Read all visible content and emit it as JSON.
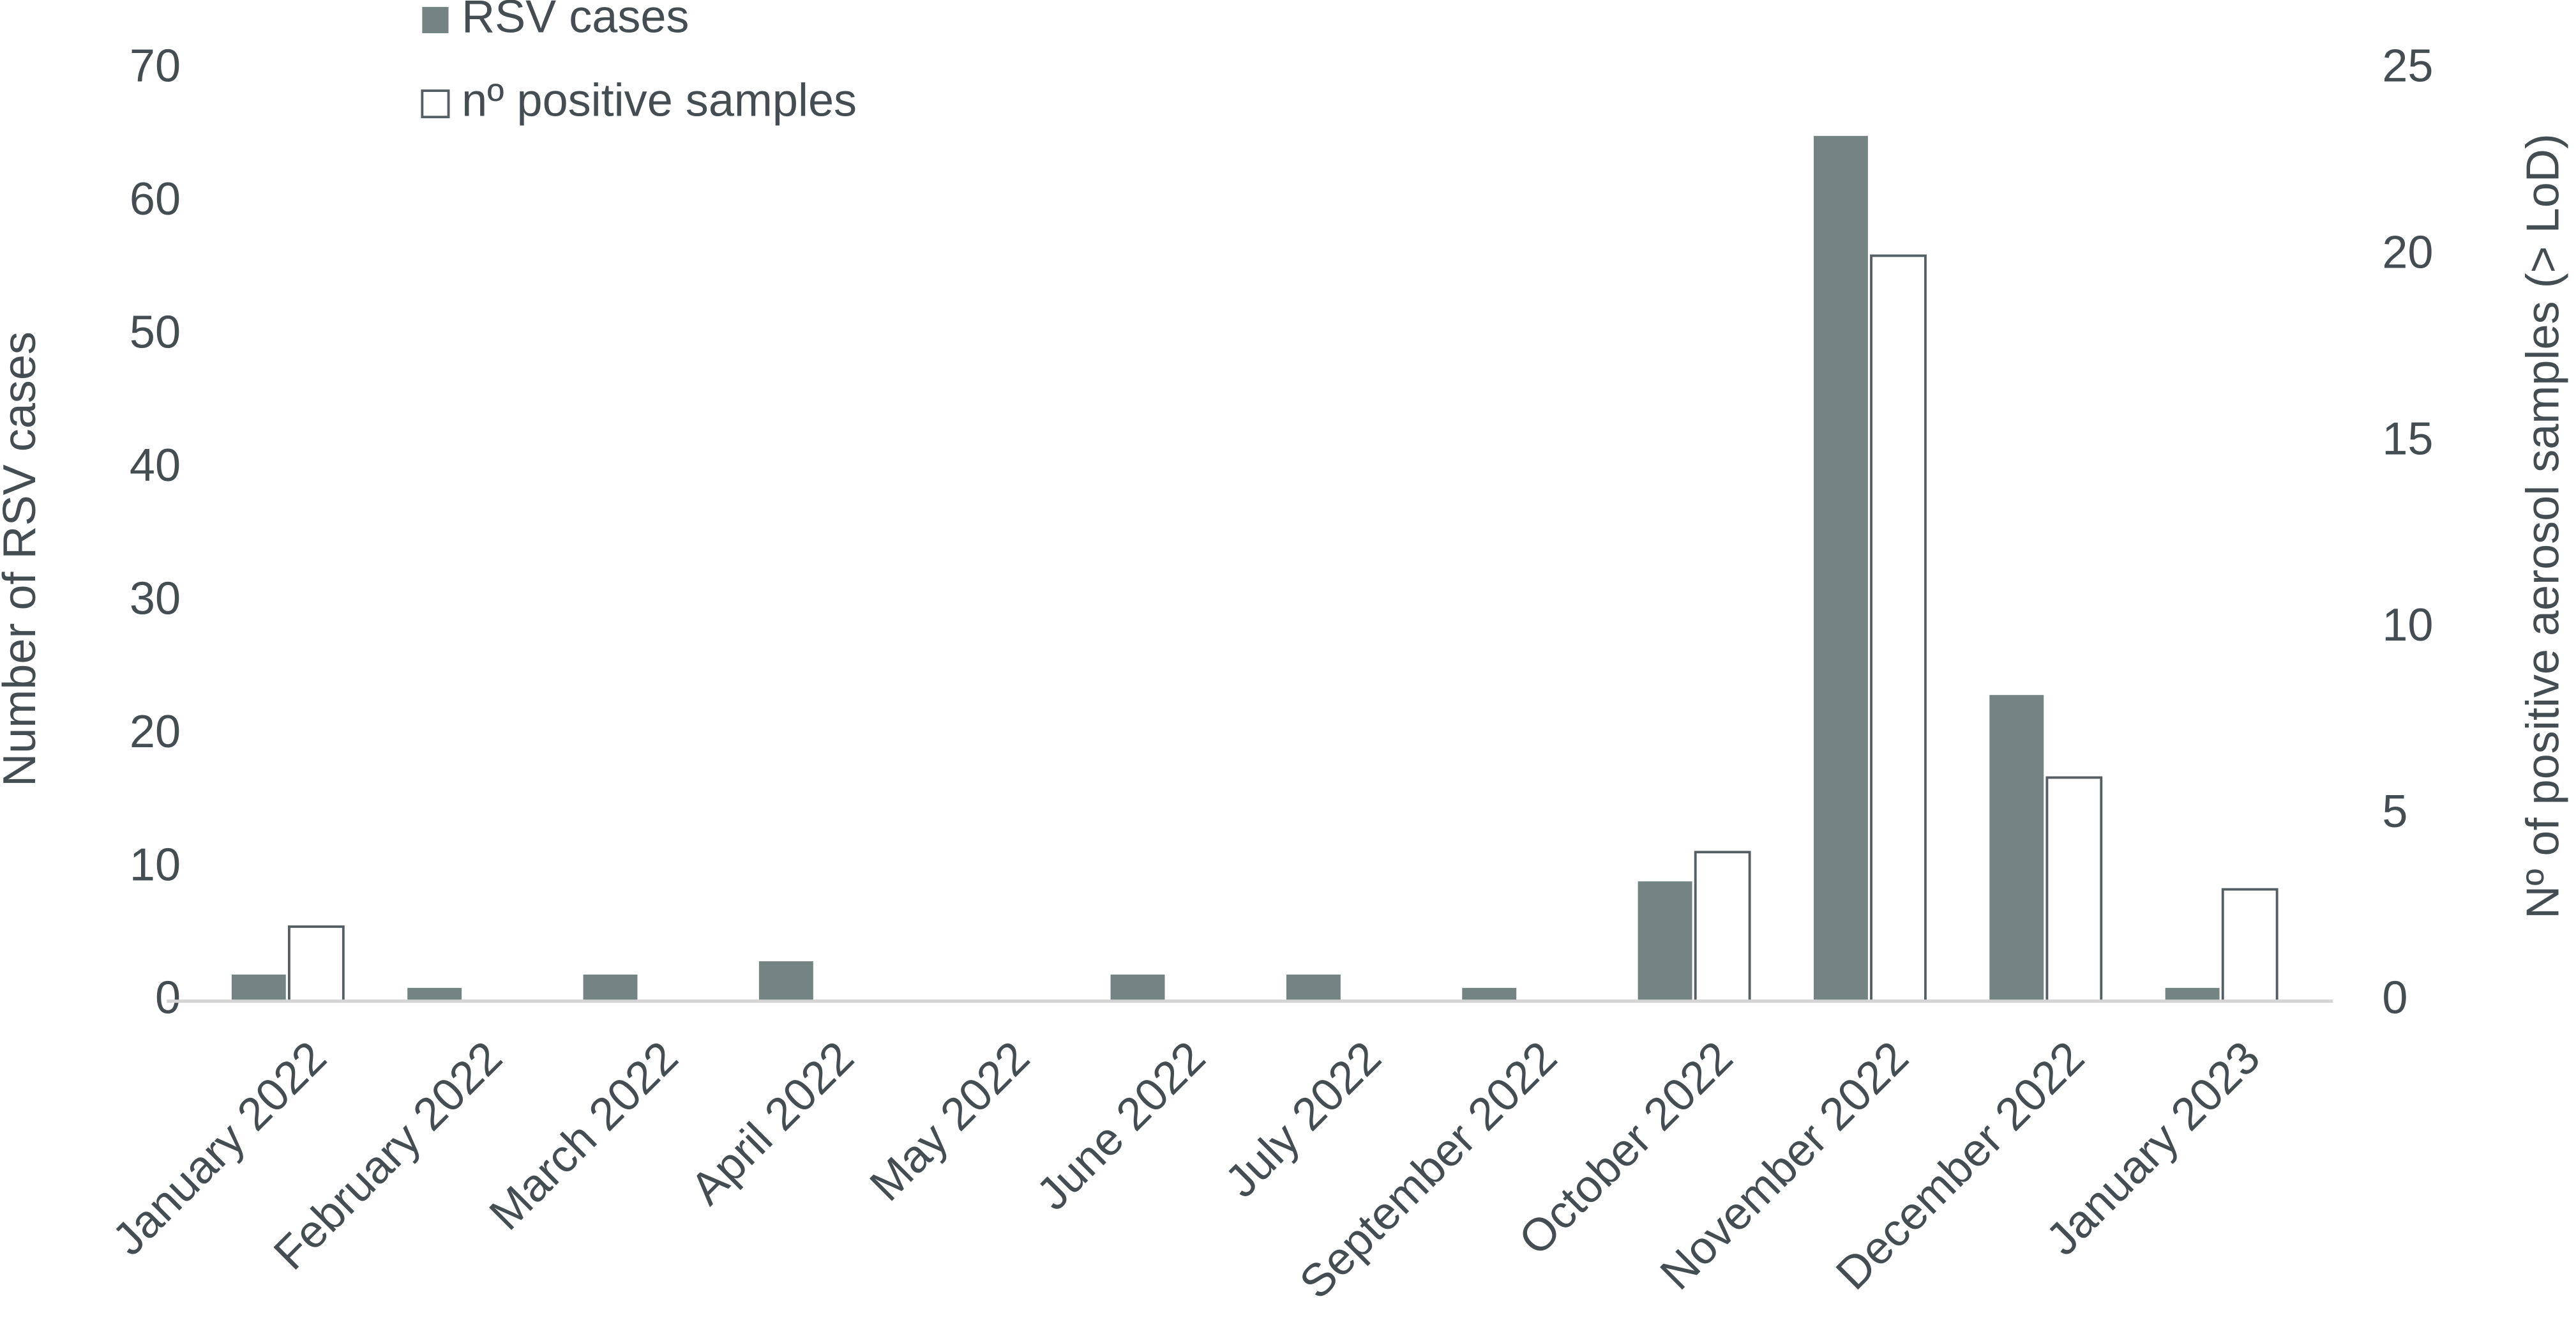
{
  "chart_data": {
    "type": "bar",
    "categories": [
      "January 2022",
      "February 2022",
      "March 2022",
      "April 2022",
      "May 2022",
      "June 2022",
      "July 2022",
      "September 2022",
      "October 2022",
      "November 2022",
      "December 2022",
      "January 2023"
    ],
    "series": [
      {
        "name": "RSV cases",
        "color": "#738482",
        "values": [
          2,
          1,
          2,
          3,
          0,
          2,
          2,
          1,
          9,
          65,
          23,
          1
        ]
      },
      {
        "name": "nº positive samples",
        "color": "#ffffff",
        "axis": "y2",
        "values": [
          2,
          0,
          0,
          0,
          0,
          0,
          0,
          0,
          4,
          20,
          6,
          3
        ]
      }
    ],
    "ylabel": "Number of RSV cases",
    "y2label": "Nº of positive aerosol samples (> LoD)",
    "ylim": [
      0,
      70
    ],
    "yticks": [
      0,
      10,
      20,
      30,
      40,
      50,
      60,
      70
    ],
    "y2lim": [
      0,
      25
    ],
    "y2ticks": [
      0,
      5,
      10,
      15,
      20,
      25
    ]
  }
}
